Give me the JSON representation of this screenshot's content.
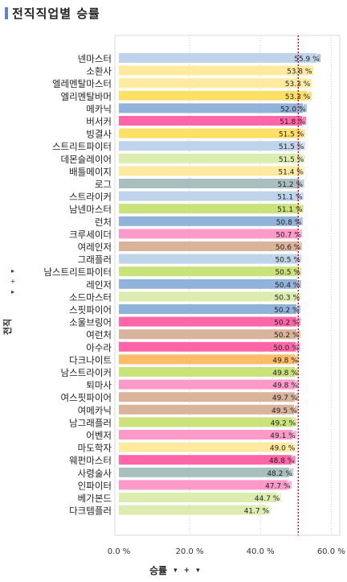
{
  "header": {
    "title": "전직직업별 승률"
  },
  "y_axis": {
    "title": "전직",
    "controls": [
      "▸",
      "+",
      "▸"
    ]
  },
  "x_axis": {
    "title": "승률",
    "controls": [
      "▾",
      "+",
      "▾"
    ]
  },
  "chart_data": {
    "type": "bar",
    "orientation": "horizontal",
    "xlabel": "승률",
    "ylabel": "전직",
    "xlim": [
      0,
      62
    ],
    "xticks": [
      "0.0 %",
      "20.0 %",
      "40.0 %",
      "60.0 %"
    ],
    "xtick_values": [
      0,
      20,
      40,
      60
    ],
    "reference_line": 50.7,
    "grid": true,
    "categories": [
      "넨마스터",
      "소환사",
      "엘레멘탈마스터",
      "엘리멘탈바머",
      "메카닉",
      "버서커",
      "빙결사",
      "스트리트파이터",
      "데몬슬레이어",
      "배틀메이지",
      "로그",
      "스트라이커",
      "남넨마스터",
      "런처",
      "크루세이더",
      "여레인저",
      "그래플러",
      "남스트리트파이터",
      "레인저",
      "소드마스터",
      "스핏파이어",
      "소울브링어",
      "여런처",
      "아수라",
      "다크나이트",
      "남스트라이커",
      "퇴마사",
      "여스핏파이어",
      "여메카닉",
      "남그래플러",
      "어벤저",
      "마도학자",
      "웨펀마스터",
      "사령술사",
      "인파이터",
      "베가본드",
      "다크템플러"
    ],
    "values": [
      55.9,
      53.8,
      53.3,
      53.3,
      52.0,
      51.8,
      51.5,
      51.5,
      51.5,
      51.4,
      51.2,
      51.1,
      51.1,
      50.8,
      50.7,
      50.6,
      50.5,
      50.5,
      50.4,
      50.3,
      50.2,
      50.2,
      50.2,
      50.0,
      49.8,
      49.8,
      49.8,
      49.7,
      49.5,
      49.2,
      49.1,
      49.0,
      48.8,
      48.2,
      47.7,
      44.7,
      41.7
    ],
    "value_labels": [
      "55.9 %",
      "53.8 %",
      "53.3 %",
      "53.3 %",
      "52.0 %",
      "51.8 %",
      "51.5 %",
      "51.5 %",
      "51.5 %",
      "51.4 %",
      "51.2 %",
      "51.1 %",
      "51.1 %",
      "50.8 %",
      "50.7 %",
      "50.6 %",
      "50.5 %",
      "50.5 %",
      "50.4 %",
      "50.3 %",
      "50.2 %",
      "50.2 %",
      "50.2 %",
      "50.0 %",
      "49.8 %",
      "49.8 %",
      "49.8 %",
      "49.7 %",
      "49.5 %",
      "49.2 %",
      "49.1 %",
      "49.0 %",
      "48.8 %",
      "48.2 %",
      "47.7 %",
      "44.7 %",
      "41.7 %"
    ],
    "colors": [
      "#bfd3ea",
      "#ffeaa0",
      "#ffeaa0",
      "#ffe066",
      "#92b3d9",
      "#ff66a8",
      "#ffe066",
      "#bfd3ea",
      "#dcedb0",
      "#ffeaa0",
      "#a9bfbf",
      "#bfd3ea",
      "#c9e27a",
      "#92b3d9",
      "#ff99c9",
      "#dab49a",
      "#bfd3ea",
      "#c9e27a",
      "#92b3d9",
      "#dcedb0",
      "#92b3d9",
      "#ff66a8",
      "#dab49a",
      "#ff66a8",
      "#ffbb66",
      "#c9e27a",
      "#ff99c9",
      "#dab49a",
      "#dab49a",
      "#c9e27a",
      "#ff99c9",
      "#ffeaa0",
      "#ff66a8",
      "#a9bfbf",
      "#ff99c9",
      "#dcedb0",
      "#dcedb0"
    ],
    "tail_colors": [
      "#92b3d9",
      "#ffe066",
      "#ffe066",
      "#ffd24d",
      "#92b3d9",
      "#ff5aa0",
      "#ffe066",
      "#bfd3ea",
      "#dcedb0",
      "#ffeaa0",
      "#a9bfbf",
      "#bfd3ea",
      "#c9e27a",
      "#92b3d9",
      "#ff99c9",
      "#dab49a",
      "#bfd3ea",
      "#c9e27a",
      "#92b3d9",
      "#dcedb0",
      "#92b3d9",
      "#ff66a8",
      "#dab49a",
      "#ff66a8",
      "#ffbb66",
      "#c9e27a",
      "#ff99c9",
      "#dab49a",
      "#dab49a",
      "#c9e27a",
      "#ff99c9",
      "#ffeaa0",
      "#ff66a8",
      "#a9bfbf",
      "#ff99c9",
      "#dcedb0",
      "#dcedb0"
    ],
    "reference_color": "#c00020",
    "grid_color": "#cccccc"
  }
}
